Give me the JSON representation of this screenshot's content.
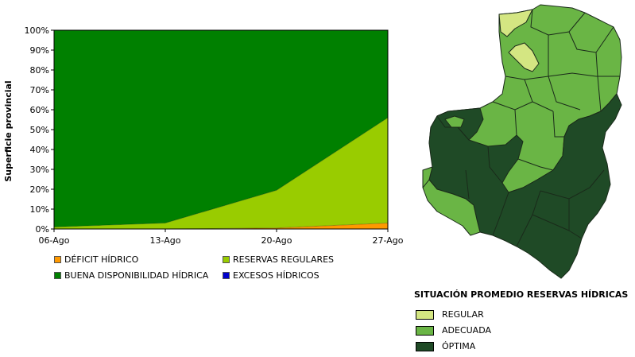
{
  "chart_data": {
    "type": "area",
    "ylabel": "Superficie provincial",
    "y_ticks": [
      "0%",
      "10%",
      "20%",
      "30%",
      "40%",
      "50%",
      "60%",
      "70%",
      "80%",
      "90%",
      "100%"
    ],
    "ylim": [
      0,
      100
    ],
    "categories": [
      "06-Ago",
      "13-Ago",
      "20-Ago",
      "27-Ago"
    ],
    "stacked": true,
    "series": [
      {
        "name": "DÉFICIT HÍDRICO",
        "color": "#ff9900",
        "values": [
          0,
          0,
          0.5,
          3
        ]
      },
      {
        "name": "RESERVAS REGULARES",
        "color": "#99cc00",
        "values": [
          1,
          3,
          19,
          53
        ]
      },
      {
        "name": "BUENA DISPONIBILIDAD HÍDRICA",
        "color": "#008000",
        "values": [
          99,
          97,
          80.5,
          44
        ]
      },
      {
        "name": "EXCESOS HÍDRICOS",
        "color": "#0000cc",
        "values": [
          0,
          0,
          0,
          0
        ]
      }
    ],
    "grid": false
  },
  "map": {
    "legend_title": "SITUACIÓN PROMEDIO RESERVAS HÍDRICAS",
    "legend_items": [
      {
        "label": "REGULAR",
        "color": "#d4e682"
      },
      {
        "label": "ADECUADA",
        "color": "#6ab545"
      },
      {
        "label": "ÓPTIMA",
        "color": "#1f4a26"
      }
    ],
    "border_color": "#1a2a1a"
  }
}
